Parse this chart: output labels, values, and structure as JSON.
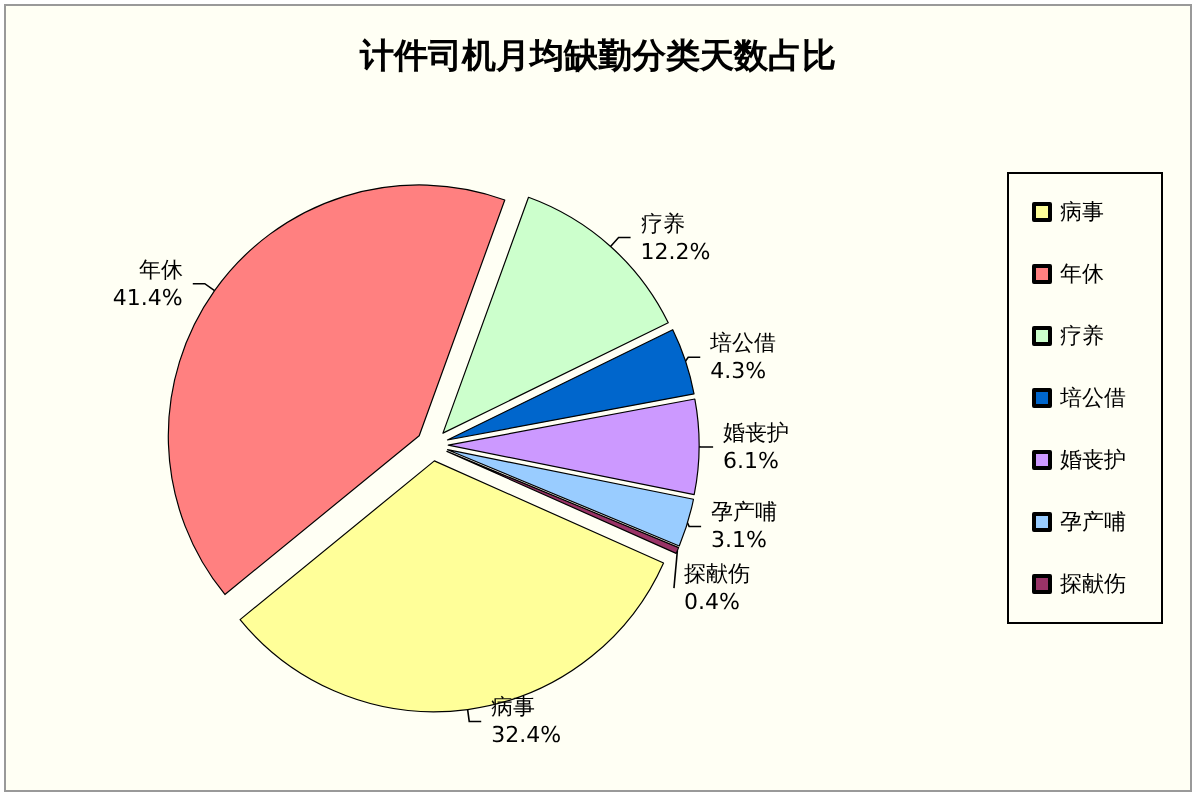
{
  "chart_data": {
    "type": "pie",
    "title": "计件司机月均缺勤分类天数占比",
    "categories": [
      "病事",
      "年休",
      "疗养",
      "培公借",
      "婚丧护",
      "孕产哺",
      "探献伤"
    ],
    "values": [
      32.4,
      41.4,
      12.2,
      4.3,
      6.1,
      3.1,
      0.4
    ],
    "colors": [
      "#ffff99",
      "#ff8080",
      "#ccffcc",
      "#0066cc",
      "#cc99ff",
      "#99ccff",
      "#993366"
    ],
    "value_labels": [
      "32.4%",
      "41.4%",
      "12.2%",
      "4.3%",
      "6.1%",
      "3.1%",
      "0.4%"
    ],
    "legend": "right"
  }
}
